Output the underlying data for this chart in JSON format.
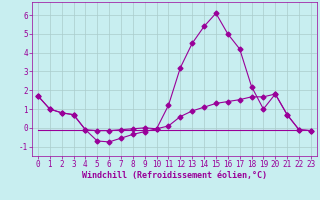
{
  "background_color": "#c8eef0",
  "grid_color": "#aacccc",
  "line_color": "#990099",
  "xlabel": "Windchill (Refroidissement éolien,°C)",
  "xlim": [
    -0.5,
    23.5
  ],
  "ylim": [
    -1.5,
    6.7
  ],
  "yticks": [
    -1,
    0,
    1,
    2,
    3,
    4,
    5,
    6
  ],
  "xticks": [
    0,
    1,
    2,
    3,
    4,
    5,
    6,
    7,
    8,
    9,
    10,
    11,
    12,
    13,
    14,
    15,
    16,
    17,
    18,
    19,
    20,
    21,
    22,
    23
  ],
  "series1_x": [
    0,
    1,
    2,
    3,
    4,
    5,
    6,
    7,
    8,
    9,
    10,
    11,
    12,
    13,
    14,
    15,
    16,
    17,
    18,
    19,
    20,
    21,
    22,
    23
  ],
  "series1_y": [
    1.7,
    1.0,
    0.8,
    0.7,
    -0.1,
    -0.7,
    -0.75,
    -0.55,
    -0.35,
    -0.2,
    -0.05,
    1.2,
    3.2,
    4.5,
    5.4,
    6.1,
    5.0,
    4.2,
    2.2,
    1.0,
    1.8,
    0.7,
    -0.1,
    -0.15
  ],
  "series2_x": [
    0,
    1,
    2,
    3,
    4,
    5,
    6,
    7,
    8,
    9,
    10,
    11,
    12,
    13,
    14,
    15,
    16,
    17,
    18,
    19,
    20,
    21,
    22,
    23
  ],
  "series2_y": [
    1.7,
    1.0,
    0.8,
    0.7,
    -0.1,
    -0.15,
    -0.15,
    -0.1,
    -0.05,
    -0.0,
    -0.05,
    0.1,
    0.6,
    0.9,
    1.1,
    1.3,
    1.4,
    1.5,
    1.65,
    1.65,
    1.8,
    0.7,
    -0.1,
    -0.15
  ],
  "series3_x": [
    0,
    23
  ],
  "series3_y": [
    -0.1,
    -0.1
  ],
  "marker_size": 2.5,
  "linewidth": 0.8,
  "xlabel_fontsize": 6.0,
  "tick_fontsize": 5.5
}
